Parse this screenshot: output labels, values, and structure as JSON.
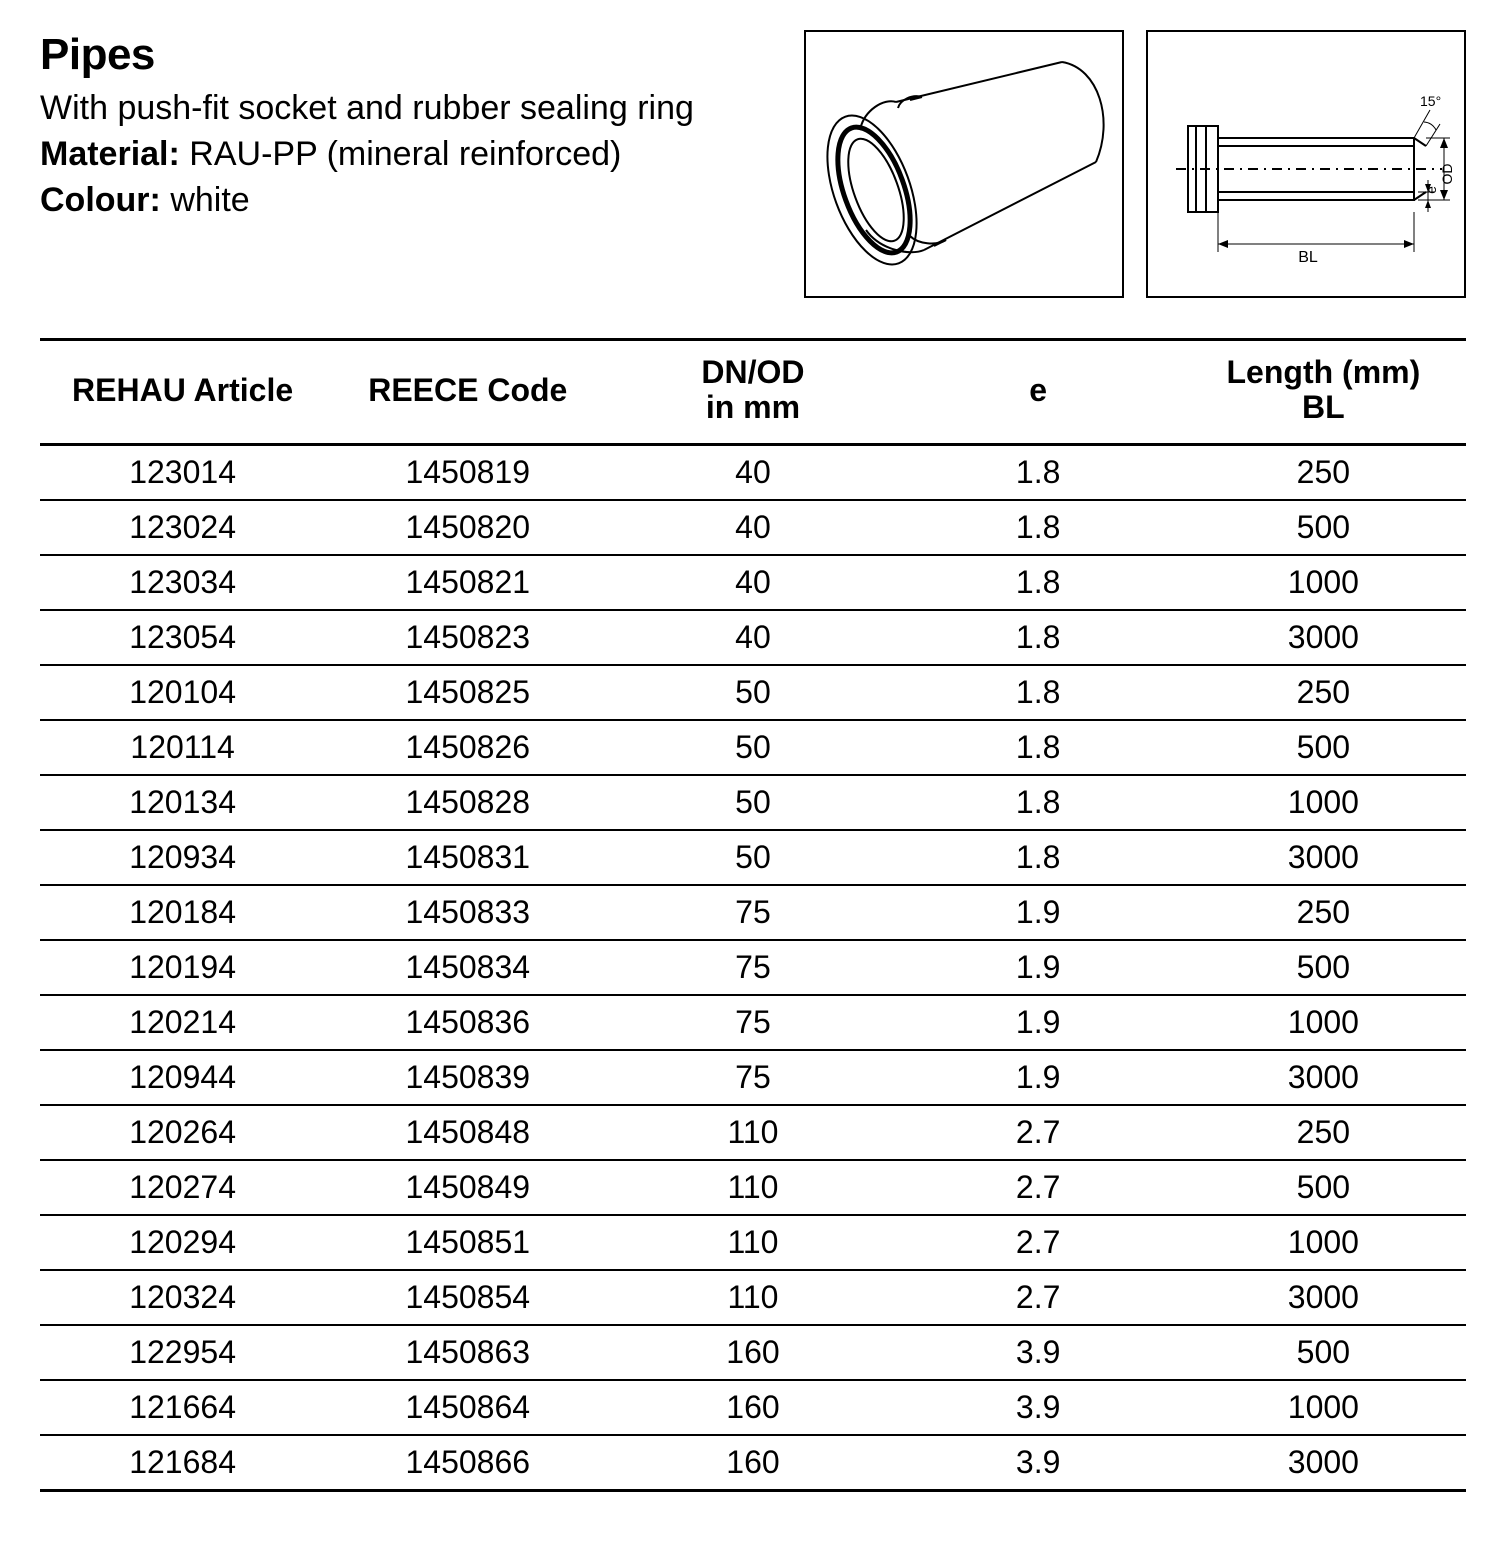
{
  "header": {
    "title": "Pipes",
    "subtitle": "With push-fit socket and rubber sealing ring",
    "attributes": [
      {
        "label": "Material:",
        "value": "RAU-PP (mineral reinforced)"
      },
      {
        "label": "Colour:",
        "value": "white"
      }
    ]
  },
  "figures": {
    "iso": {
      "border_color": "#000000",
      "stroke_color": "#000000",
      "stroke_width": 2,
      "background": "#ffffff"
    },
    "dim": {
      "border_color": "#000000",
      "stroke_color": "#000000",
      "stroke_width": 2,
      "background": "#ffffff",
      "labels": {
        "bl": "BL",
        "od": "OD",
        "e": "e",
        "angle": "15°"
      }
    }
  },
  "table": {
    "columns": [
      {
        "line1": "REHAU Article",
        "line2": ""
      },
      {
        "line1": "REECE Code",
        "line2": ""
      },
      {
        "line1": "DN/OD",
        "line2": "in mm"
      },
      {
        "line1": "e",
        "line2": ""
      },
      {
        "line1": "Length (mm)",
        "line2": "BL"
      }
    ],
    "col_widths_pct": [
      20,
      20,
      20,
      20,
      20
    ],
    "font_size": 32,
    "header_weight": 800,
    "cell_weight": 300,
    "border_color": "#000000",
    "header_border_width": 3,
    "row_border_width": 2,
    "rows": [
      [
        "123014",
        "1450819",
        "40",
        "1.8",
        "250"
      ],
      [
        "123024",
        "1450820",
        "40",
        "1.8",
        "500"
      ],
      [
        "123034",
        "1450821",
        "40",
        "1.8",
        "1000"
      ],
      [
        "123054",
        "1450823",
        "40",
        "1.8",
        "3000"
      ],
      [
        "120104",
        "1450825",
        "50",
        "1.8",
        "250"
      ],
      [
        "120114",
        "1450826",
        "50",
        "1.8",
        "500"
      ],
      [
        "120134",
        "1450828",
        "50",
        "1.8",
        "1000"
      ],
      [
        "120934",
        "1450831",
        "50",
        "1.8",
        "3000"
      ],
      [
        "120184",
        "1450833",
        "75",
        "1.9",
        "250"
      ],
      [
        "120194",
        "1450834",
        "75",
        "1.9",
        "500"
      ],
      [
        "120214",
        "1450836",
        "75",
        "1.9",
        "1000"
      ],
      [
        "120944",
        "1450839",
        "75",
        "1.9",
        "3000"
      ],
      [
        "120264",
        "1450848",
        "110",
        "2.7",
        "250"
      ],
      [
        "120274",
        "1450849",
        "110",
        "2.7",
        "500"
      ],
      [
        "120294",
        "1450851",
        "110",
        "2.7",
        "1000"
      ],
      [
        "120324",
        "1450854",
        "110",
        "2.7",
        "3000"
      ],
      [
        "122954",
        "1450863",
        "160",
        "3.9",
        "500"
      ],
      [
        "121664",
        "1450864",
        "160",
        "3.9",
        "1000"
      ],
      [
        "121684",
        "1450866",
        "160",
        "3.9",
        "3000"
      ]
    ]
  }
}
